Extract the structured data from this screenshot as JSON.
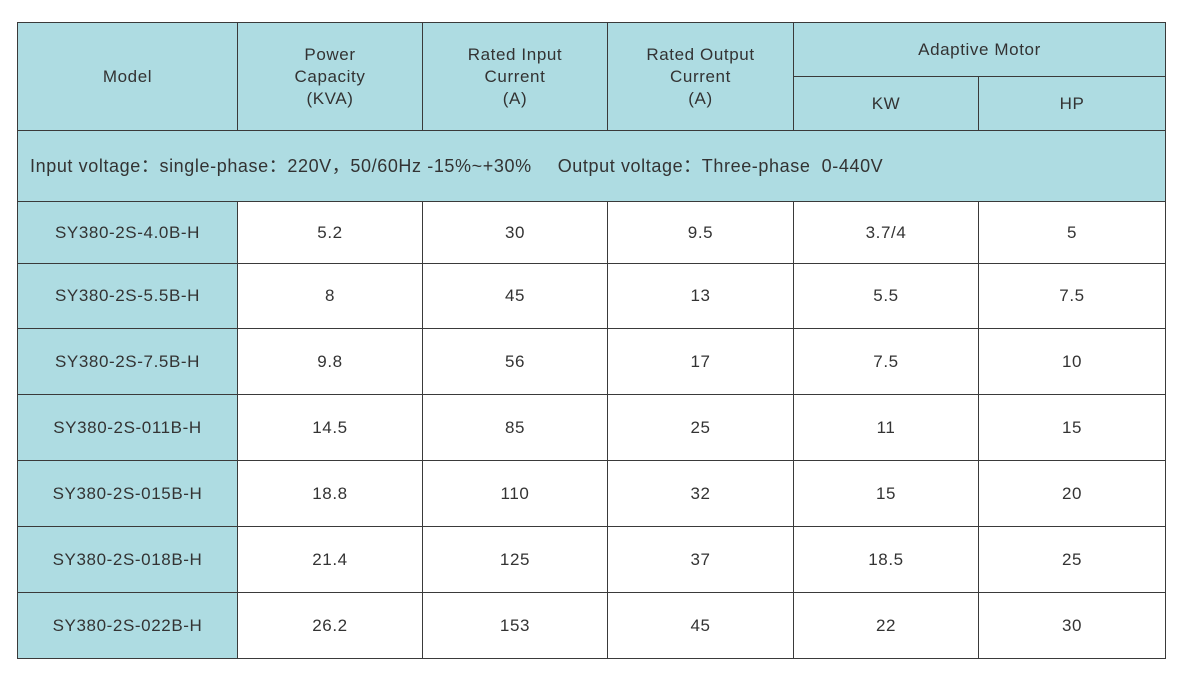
{
  "header": {
    "model": "Model",
    "power_capacity": [
      "Power",
      "Capacity",
      "(KVA)"
    ],
    "rated_input_current": [
      "Rated Input",
      "Current",
      "(A)"
    ],
    "rated_output_current": [
      "Rated Output",
      "Current",
      "(A)"
    ],
    "adaptive_motor": "Adaptive Motor",
    "kw": "KW",
    "hp": "HP"
  },
  "conditions": {
    "input_voltage": "Input voltage：single-phase：220V，50/60Hz -15%~+30%",
    "output_voltage": "Output voltage：Three-phase  0-440V"
  },
  "rows": [
    {
      "model": "SY380-2S-4.0B-H",
      "kva": "5.2",
      "input_a": "30",
      "output_a": "9.5",
      "kw": "3.7/4",
      "hp": "5"
    },
    {
      "model": "SY380-2S-5.5B-H",
      "kva": "8",
      "input_a": "45",
      "output_a": "13",
      "kw": "5.5",
      "hp": "7.5"
    },
    {
      "model": "SY380-2S-7.5B-H",
      "kva": "9.8",
      "input_a": "56",
      "output_a": "17",
      "kw": "7.5",
      "hp": "10"
    },
    {
      "model": "SY380-2S-011B-H",
      "kva": "14.5",
      "input_a": "85",
      "output_a": "25",
      "kw": "11",
      "hp": "15"
    },
    {
      "model": "SY380-2S-015B-H",
      "kva": "18.8",
      "input_a": "110",
      "output_a": "32",
      "kw": "15",
      "hp": "20"
    },
    {
      "model": "SY380-2S-018B-H",
      "kva": "21.4",
      "input_a": "125",
      "output_a": "37",
      "kw": "18.5",
      "hp": "25"
    },
    {
      "model": "SY380-2S-022B-H",
      "kva": "26.2",
      "input_a": "153",
      "output_a": "45",
      "kw": "22",
      "hp": "30"
    }
  ],
  "colors": {
    "header_fill": "#aedce2",
    "border": "#3a3a3a",
    "text": "#333333"
  }
}
